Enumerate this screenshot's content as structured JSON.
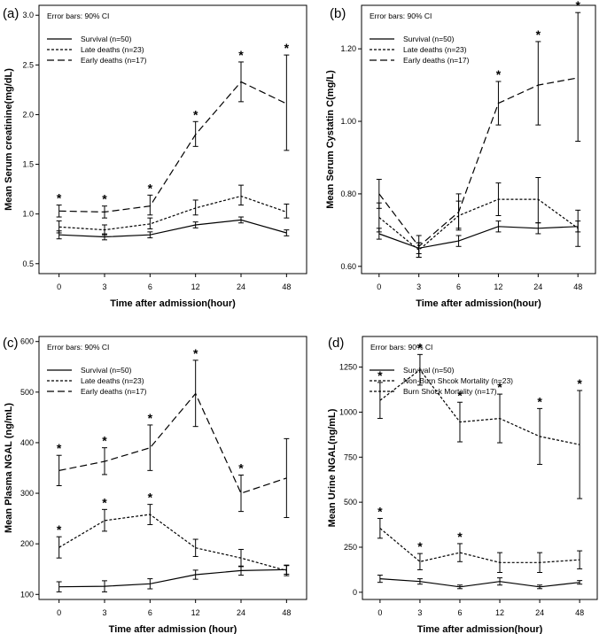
{
  "chart_data": [
    {
      "type": "line",
      "panel_label": "(a)",
      "error_note": "Error bars: 90% CI",
      "xlabel": "Time after admission(hour)",
      "ylabel": "Mean Serum creatinine(mg/dL)",
      "categories": [
        "0",
        "3",
        "6",
        "12",
        "24",
        "48"
      ],
      "ylim": [
        0.4,
        3.1
      ],
      "yticks": [
        0.5,
        1.0,
        1.5,
        2.0,
        2.5,
        3.0
      ],
      "ytick_labels": [
        "0.5",
        "1.0",
        "1.5",
        "2.0",
        "2.5",
        "3.0"
      ],
      "series": [
        {
          "name": "Survival (n=50)",
          "style": "solid",
          "values": [
            0.79,
            0.77,
            0.79,
            0.89,
            0.94,
            0.81
          ],
          "lower": [
            0.75,
            0.74,
            0.76,
            0.86,
            0.91,
            0.78
          ],
          "upper": [
            0.83,
            0.8,
            0.82,
            0.92,
            0.97,
            0.84
          ]
        },
        {
          "name": "Late deaths (n=23)",
          "style": "shortdash",
          "values": [
            0.87,
            0.84,
            0.9,
            1.06,
            1.18,
            1.02
          ],
          "lower": [
            0.81,
            0.79,
            0.85,
            0.99,
            1.09,
            0.96
          ],
          "upper": [
            0.93,
            0.89,
            0.96,
            1.14,
            1.29,
            1.1
          ]
        },
        {
          "name": "Early deaths (n=17)",
          "style": "longdash",
          "values": [
            1.03,
            1.02,
            1.08,
            1.8,
            2.33,
            2.11
          ],
          "lower": [
            0.97,
            0.96,
            0.99,
            1.68,
            2.13,
            1.64
          ],
          "upper": [
            1.09,
            1.08,
            1.19,
            1.93,
            2.53,
            2.6
          ]
        }
      ],
      "stars": [
        "*",
        "*",
        "*",
        "*",
        "*",
        "*"
      ]
    },
    {
      "type": "line",
      "panel_label": "(b)",
      "error_note": "Error bars: 90% CI",
      "xlabel": "Time after admission(hour)",
      "ylabel": "Mean Serum Cystatin C(mg/L)",
      "categories": [
        "0",
        "3",
        "6",
        "12",
        "24",
        "48"
      ],
      "ylim": [
        0.58,
        1.32
      ],
      "yticks": [
        0.6,
        0.8,
        1.0,
        1.2
      ],
      "ytick_labels": [
        "0.60",
        "0.80",
        "1.00",
        "1.20"
      ],
      "series": [
        {
          "name": "Survival (n=50)",
          "style": "solid",
          "values": [
            0.69,
            0.65,
            0.67,
            0.71,
            0.705,
            0.71
          ],
          "lower": [
            0.675,
            0.635,
            0.655,
            0.695,
            0.69,
            0.695
          ],
          "upper": [
            0.705,
            0.665,
            0.685,
            0.725,
            0.72,
            0.725
          ]
        },
        {
          "name": "Late deaths (n=23)",
          "style": "shortdash",
          "values": [
            0.735,
            0.645,
            0.74,
            0.785,
            0.785,
            0.705
          ],
          "lower": [
            0.695,
            0.625,
            0.705,
            0.74,
            0.72,
            0.655
          ],
          "upper": [
            0.775,
            0.665,
            0.78,
            0.83,
            0.845,
            0.755
          ]
        },
        {
          "name": "Early deaths (n=17)",
          "style": "longdash",
          "values": [
            0.8,
            0.655,
            0.75,
            1.05,
            1.1,
            1.12
          ],
          "lower": [
            0.76,
            0.625,
            0.7,
            0.99,
            0.99,
            0.945
          ],
          "upper": [
            0.84,
            0.685,
            0.8,
            1.11,
            1.22,
            1.3
          ]
        }
      ],
      "stars": [
        "",
        "",
        "",
        "*",
        "*",
        "*"
      ]
    },
    {
      "type": "line",
      "panel_label": "(c)",
      "error_note": "Error bars: 90% CI",
      "xlabel": "Time after admission (hour)",
      "ylabel": "Mean Plasma NGAL (ng/mL)",
      "categories": [
        "0",
        "3",
        "6",
        "12",
        "24",
        "48"
      ],
      "ylim": [
        90,
        610
      ],
      "yticks": [
        100,
        200,
        300,
        400,
        500,
        600
      ],
      "ytick_labels": [
        "100",
        "200",
        "300",
        "400",
        "500",
        "600"
      ],
      "series": [
        {
          "name": "Survival (n=50)",
          "style": "solid",
          "values": [
            115,
            116,
            121,
            139,
            147,
            149
          ],
          "lower": [
            105,
            105,
            111,
            130,
            138,
            140
          ],
          "upper": [
            125,
            127,
            131,
            148,
            156,
            158
          ]
        },
        {
          "name": "Late deaths (n=23)",
          "style": "shortdash",
          "values": [
            193,
            246,
            258,
            192,
            172,
            147
          ],
          "lower": [
            172,
            225,
            238,
            175,
            155,
            137
          ],
          "upper": [
            214,
            268,
            278,
            209,
            189,
            157
          ]
        },
        {
          "name": "Early deaths (n=17)",
          "style": "longdash",
          "values": [
            345,
            363,
            390,
            497,
            300,
            330
          ],
          "lower": [
            315,
            337,
            345,
            432,
            264,
            252
          ],
          "upper": [
            375,
            390,
            435,
            563,
            336,
            408
          ]
        }
      ],
      "stars": [
        "*",
        "*",
        "*",
        "*",
        "*",
        ""
      ],
      "stars_low": [
        "*",
        "*",
        "*",
        "",
        "",
        ""
      ]
    },
    {
      "type": "line",
      "panel_label": "(d)",
      "error_note": "Error bars: 90% CI",
      "xlabel": "Time after admission(hour)",
      "ylabel": "Mean Urine NGAL(ng/mL)",
      "categories": [
        "0",
        "3",
        "6",
        "12",
        "24",
        "48"
      ],
      "ylim": [
        -40,
        1420
      ],
      "yticks": [
        0,
        250,
        500,
        750,
        1000,
        1250
      ],
      "ytick_labels": [
        "0",
        "250",
        "500",
        "750",
        "1000",
        "1250"
      ],
      "series": [
        {
          "name": "Survival (n=50)",
          "style": "solid",
          "values": [
            75,
            60,
            30,
            60,
            30,
            55
          ],
          "lower": [
            55,
            45,
            20,
            40,
            20,
            45
          ],
          "upper": [
            95,
            75,
            40,
            80,
            40,
            65
          ]
        },
        {
          "name": "Non-Burn Shcok Mortality (n=23)",
          "style": "shortdash",
          "values": [
            355,
            170,
            220,
            165,
            165,
            180
          ],
          "lower": [
            300,
            125,
            170,
            110,
            110,
            130
          ],
          "upper": [
            410,
            215,
            270,
            220,
            220,
            230
          ]
        },
        {
          "name": "Burn Shock Mortality (n=17)",
          "style": "shortdash",
          "values": [
            1065,
            1235,
            945,
            965,
            865,
            820
          ],
          "lower": [
            965,
            1150,
            835,
            830,
            710,
            520
          ],
          "upper": [
            1165,
            1320,
            1055,
            1100,
            1020,
            1120
          ]
        }
      ],
      "stars": [
        "*",
        "*",
        "*",
        "*",
        "*",
        "*"
      ],
      "stars_low": [
        "*",
        "*",
        "*",
        "",
        "",
        ""
      ]
    }
  ]
}
